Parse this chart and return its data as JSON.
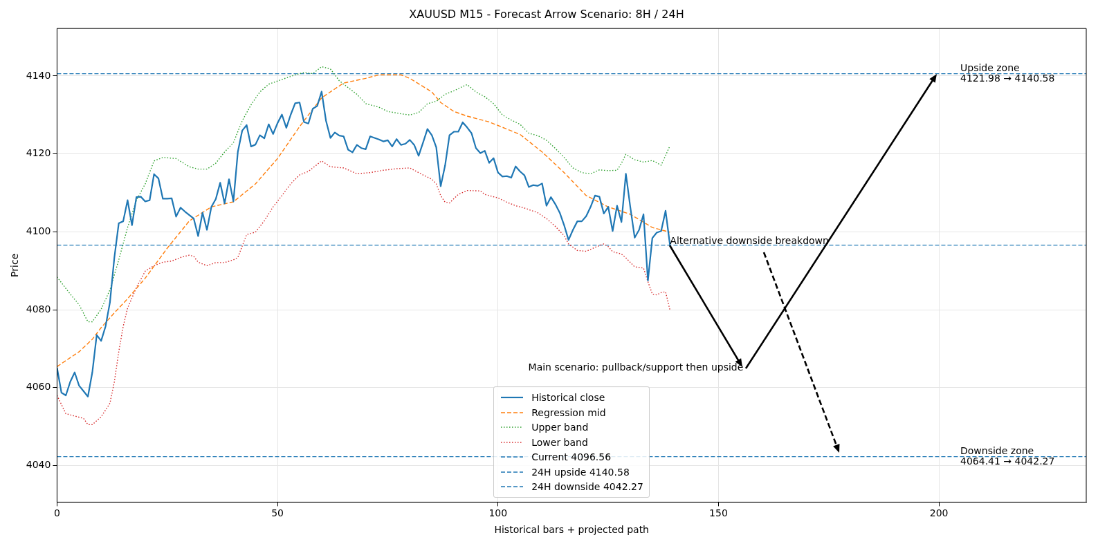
{
  "chart_data": {
    "type": "line",
    "title": "XAUUSD M15 - Forecast Arrow Scenario: 8H / 24H",
    "xlabel": "Historical bars + projected path",
    "ylabel": "Price",
    "xlim": [
      0,
      233.4
    ],
    "ylim": [
      4030.6,
      4152.2
    ],
    "xticks": [
      0,
      50,
      100,
      150,
      200
    ],
    "yticks": [
      4040,
      4060,
      4080,
      4100,
      4120,
      4140
    ],
    "grid": true,
    "legend": "bottom",
    "marker": "none",
    "series": [
      {
        "name": "Historical close",
        "color": "#1f77b4",
        "line_style": "solid",
        "x": [
          0,
          1,
          2,
          3,
          4,
          5,
          6,
          7,
          8,
          9,
          10,
          11,
          12,
          13,
          14,
          15,
          16,
          17,
          18,
          19,
          20,
          21,
          22,
          23,
          24,
          25,
          26,
          27,
          28,
          29,
          30,
          31,
          32,
          33,
          34,
          35,
          36,
          37,
          38,
          39,
          40,
          41,
          42,
          43,
          44,
          45,
          46,
          47,
          48,
          49,
          50,
          51,
          52,
          53,
          54,
          55,
          56,
          57,
          58,
          59,
          60,
          61,
          62,
          63,
          64,
          65,
          66,
          67,
          68,
          69,
          70,
          71,
          72,
          73,
          74,
          75,
          76,
          77,
          78,
          79,
          80,
          81,
          82,
          83,
          84,
          85,
          86,
          87,
          88,
          89,
          90,
          91,
          92,
          93,
          94,
          95,
          96,
          97,
          98,
          99,
          100,
          101,
          102,
          103,
          104,
          105,
          106,
          107,
          108,
          109,
          110,
          111,
          112,
          113,
          114,
          115,
          116,
          117,
          118,
          119,
          120,
          121,
          122,
          123,
          124,
          125,
          126,
          127,
          128,
          129,
          130,
          131,
          132,
          133,
          134,
          135,
          136,
          137,
          138,
          139
        ],
        "values": [
          4065.1,
          4058.7,
          4058.0,
          4061.5,
          4063.9,
          4060.5,
          4059.1,
          4057.7,
          4063.9,
          4073.5,
          4072.0,
          4075.7,
          4081.9,
          4093.4,
          4102.2,
          4102.7,
          4108.1,
          4101.7,
          4108.9,
          4109.0,
          4107.8,
          4108.1,
          4114.8,
          4113.7,
          4108.5,
          4108.5,
          4108.6,
          4103.9,
          4106.2,
          4105.2,
          4104.3,
          4103.4,
          4098.9,
          4104.9,
          4100.5,
          4106.4,
          4108.4,
          4112.6,
          4107.3,
          4113.5,
          4107.8,
          4120.5,
          4126.0,
          4127.4,
          4121.9,
          4122.4,
          4124.8,
          4124.0,
          4127.6,
          4125.1,
          4127.9,
          4130.1,
          4126.7,
          4130.1,
          4133.0,
          4133.2,
          4128.2,
          4127.8,
          4131.6,
          4132.3,
          4136.0,
          4128.5,
          4124.1,
          4125.5,
          4124.7,
          4124.5,
          4121.1,
          4120.4,
          4122.3,
          4121.5,
          4121.2,
          4124.5,
          4124.1,
          4123.7,
          4123.2,
          4123.5,
          4121.9,
          4123.8,
          4122.3,
          4122.6,
          4123.6,
          4122.3,
          4119.5,
          4122.9,
          4126.4,
          4124.8,
          4121.7,
          4111.7,
          4117.0,
          4124.8,
          4125.7,
          4125.7,
          4128.1,
          4126.8,
          4125.3,
          4121.5,
          4120.2,
          4120.8,
          4117.7,
          4118.9,
          4115.2,
          4114.2,
          4114.3,
          4113.9,
          4116.8,
          4115.5,
          4114.5,
          4111.5,
          4112.0,
          4111.8,
          4112.4,
          4106.7,
          4108.9,
          4107.1,
          4104.9,
          4101.7,
          4097.9,
          4100.5,
          4102.7,
          4102.7,
          4104.0,
          4106.4,
          4109.3,
          4109.0,
          4104.7,
          4106.4,
          4100.2,
          4106.7,
          4102.5,
          4114.9,
          4106.4,
          4098.5,
          4100.5,
          4104.5,
          4087.5,
          4098.4,
          4099.8,
          4100.2,
          4105.4,
          4096.6
        ]
      },
      {
        "name": "Regression mid",
        "color": "#ff7f0e",
        "line_style": "dashed",
        "x": [
          0,
          5,
          8,
          10,
          13,
          16,
          20,
          25,
          30,
          35,
          40,
          45,
          50,
          55,
          60,
          65,
          70,
          73,
          78,
          80,
          83,
          85,
          87,
          90,
          93,
          98,
          100,
          105,
          110,
          115,
          120,
          125,
          130,
          135,
          139
        ],
        "values": [
          4065.4,
          4069.2,
          4072.4,
          4075.4,
          4079.2,
          4082.8,
          4088.1,
          4095.8,
          4102.8,
          4106.4,
          4107.7,
          4112.3,
          4118.8,
          4127.0,
          4134.4,
          4138.2,
          4139.4,
          4140.3,
          4140.3,
          4139.4,
          4137.3,
          4135.9,
          4133.2,
          4130.9,
          4129.7,
          4128.2,
          4127.3,
          4125.0,
          4120.5,
          4115.2,
          4109.3,
          4106.4,
          4104.5,
          4101.1,
          4099.9
        ]
      },
      {
        "name": "Upper band",
        "color": "#2ca02c",
        "line_style": "dotted",
        "x": [
          0,
          3,
          5,
          7,
          8,
          10,
          12,
          14,
          16,
          18,
          20,
          22,
          24,
          27,
          30,
          32,
          34,
          36,
          38,
          40,
          42,
          44,
          46,
          48,
          51,
          54,
          56,
          58,
          60,
          62,
          64,
          65,
          68,
          70,
          73,
          75,
          78,
          80,
          82,
          84,
          86,
          88,
          90,
          92,
          93,
          95,
          97,
          99,
          101,
          103,
          105,
          107,
          109,
          111,
          113,
          115,
          117,
          119,
          121,
          123,
          125,
          127,
          128,
          129,
          131,
          133,
          135,
          137,
          139
        ],
        "values": [
          4088.4,
          4084.0,
          4081.3,
          4076.9,
          4076.9,
          4080.1,
          4085.1,
          4092.8,
          4101.1,
          4108.1,
          4112.3,
          4118.2,
          4119.1,
          4118.8,
          4116.7,
          4116.1,
          4116.1,
          4117.6,
          4120.5,
          4122.9,
          4128.5,
          4132.6,
          4135.9,
          4137.9,
          4139.1,
          4140.3,
          4140.9,
          4140.6,
          4142.4,
          4141.8,
          4138.8,
          4137.9,
          4135.3,
          4132.9,
          4132.0,
          4130.9,
          4130.3,
          4130.0,
          4130.6,
          4132.9,
          4133.5,
          4135.3,
          4136.2,
          4137.3,
          4137.8,
          4135.9,
          4134.7,
          4132.9,
          4130.0,
          4128.7,
          4127.6,
          4125.3,
          4124.7,
          4123.5,
          4121.4,
          4119.1,
          4116.4,
          4115.2,
          4114.9,
          4115.9,
          4115.7,
          4115.8,
          4117.6,
          4119.9,
          4118.5,
          4117.9,
          4118.3,
          4117.1,
          4122.1
        ]
      },
      {
        "name": "Lower band",
        "color": "#d62728",
        "line_style": "dotted",
        "x": [
          0,
          2,
          4,
          6,
          7,
          8,
          10,
          12,
          13,
          14,
          15,
          16,
          18,
          20,
          22,
          24,
          26,
          28,
          30,
          31,
          32,
          34,
          36,
          38,
          40,
          41,
          43,
          45,
          47,
          49,
          51,
          53,
          55,
          57,
          60,
          62,
          65,
          68,
          71,
          74,
          77,
          80,
          83,
          85,
          86,
          87,
          88,
          89,
          91,
          93,
          96,
          97,
          100,
          102,
          104,
          106,
          109,
          111,
          113,
          115,
          116,
          118,
          120,
          122,
          124,
          125,
          126,
          128,
          129,
          131,
          133,
          134,
          135,
          136,
          137,
          138,
          139
        ],
        "values": [
          4058.0,
          4053.3,
          4052.7,
          4052.1,
          4050.5,
          4050.5,
          4052.5,
          4056.0,
          4061.5,
          4069.2,
          4075.7,
          4080.4,
          4085.7,
          4089.9,
          4091.3,
          4092.2,
          4092.5,
          4093.4,
          4094.0,
          4093.7,
          4092.2,
          4091.3,
          4092.1,
          4092.1,
          4092.8,
          4093.4,
          4099.3,
          4099.9,
          4102.8,
          4106.4,
          4109.3,
          4112.3,
          4114.6,
          4115.5,
          4118.2,
          4116.7,
          4116.4,
          4114.9,
          4115.2,
          4115.8,
          4116.2,
          4116.4,
          4114.6,
          4113.5,
          4112.3,
          4109.3,
          4107.6,
          4107.4,
          4109.6,
          4110.6,
          4110.5,
          4109.6,
          4108.7,
          4107.6,
          4106.7,
          4106.1,
          4104.9,
          4103.4,
          4101.4,
          4099.0,
          4096.9,
          4095.2,
          4095.0,
          4096.0,
          4096.9,
          4096.2,
          4094.9,
          4094.3,
          4093.3,
          4091.0,
          4090.7,
          4087.2,
          4084.0,
          4083.8,
          4084.4,
          4084.6,
          4079.9
        ]
      }
    ],
    "ref_lines": [
      {
        "axis": "y",
        "value": 4096.56,
        "label": "Current 4096.56",
        "color": "#1f77b4",
        "line_style": "dashed"
      },
      {
        "axis": "y",
        "value": 4140.58,
        "label": "24H upside 4140.58",
        "color": "#1f77b4",
        "line_style": "dashed"
      },
      {
        "axis": "y",
        "value": 4042.27,
        "label": "24H downside 4042.27",
        "color": "#1f77b4",
        "line_style": "dashed"
      }
    ],
    "annotations": [
      {
        "text": "Main scenario: pullback/support then upside",
        "x": 139,
        "y": 4096.56
      },
      {
        "text": "Alternative downside breakdown",
        "x": 139,
        "y": 4096.56
      },
      {
        "text": "Upside zone\n4121.98 → 4140.58",
        "y": 4140.58
      },
      {
        "text": "Downside zone\n4064.41 → 4042.27",
        "y": 4042.27
      }
    ]
  }
}
